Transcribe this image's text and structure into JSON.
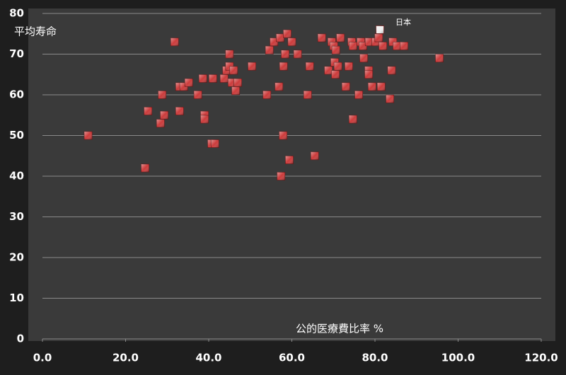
{
  "chart_data": {
    "type": "scatter",
    "ylabel": "平均寿命",
    "xlabel": "公的医療費比率 %",
    "annotation": "日本",
    "xlim": [
      0,
      120
    ],
    "ylim": [
      0,
      80
    ],
    "xticks": [
      {
        "value": 0,
        "label": "0.0"
      },
      {
        "value": 20,
        "label": "20.0"
      },
      {
        "value": 40,
        "label": "40.0"
      },
      {
        "value": 60,
        "label": "60.0"
      },
      {
        "value": 80,
        "label": "80.0"
      },
      {
        "value": 100,
        "label": "100.0"
      },
      {
        "value": 120,
        "label": "120.0"
      }
    ],
    "yticks": [
      0,
      10,
      20,
      30,
      40,
      50,
      60,
      70,
      80
    ],
    "grid": true,
    "series": [
      {
        "color": "#cc3b3b",
        "x": [
          11,
          24.7,
          25.4,
          28.4,
          28.8,
          29.3,
          31.8,
          33,
          33,
          34,
          35.2,
          37.4,
          38.6,
          39,
          39,
          40.7,
          41.5,
          41,
          43.7,
          44.3,
          45,
          45,
          45.6,
          46,
          46.5,
          47,
          50.4,
          54,
          54.6,
          55.7,
          56.9,
          57.2,
          57.4,
          57.9,
          58,
          58.4,
          58.9,
          59.4,
          60,
          61.4,
          63.8,
          64.3,
          65.5,
          67.2,
          68.8,
          69.6,
          70.1,
          70.3,
          70.5,
          70.6,
          71.1,
          71.7,
          73,
          73.7,
          74.4,
          74.7,
          74.7,
          76.1,
          76.6,
          77.1,
          77.3,
          78.5,
          78.5,
          78.6,
          79.3,
          80.2,
          80.9,
          81.5,
          81.9,
          83.6,
          84,
          84.3,
          85.3,
          87,
          95.5
        ],
        "values": [
          50,
          42,
          56,
          53,
          60,
          55,
          73,
          62,
          56,
          62,
          63,
          60,
          64,
          55,
          54,
          48,
          48,
          64,
          64,
          66,
          70,
          67,
          63,
          66,
          61,
          63,
          67,
          60,
          71,
          73,
          62,
          74,
          40,
          50,
          67,
          70,
          75,
          44,
          73,
          70,
          60,
          67,
          45,
          74,
          66,
          73,
          72,
          68,
          65,
          71,
          67,
          74,
          62,
          67,
          73,
          72,
          54,
          60,
          73,
          72,
          69,
          66,
          65,
          73,
          62,
          73,
          74,
          62,
          72,
          59,
          66,
          73,
          72,
          72,
          69
        ]
      },
      {
        "color": "#f0f0f0",
        "x": [
          81.2
        ],
        "values": [
          76
        ]
      }
    ]
  }
}
